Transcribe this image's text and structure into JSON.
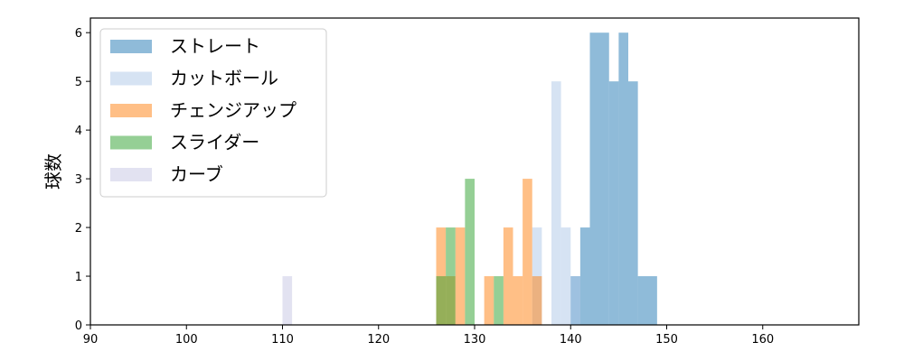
{
  "chart_data": {
    "type": "bar",
    "title": "",
    "xlabel": "",
    "ylabel": "球数",
    "xlim": [
      90,
      170
    ],
    "ylim": [
      0,
      6.3
    ],
    "xticks": [
      90,
      100,
      110,
      120,
      130,
      140,
      150,
      160
    ],
    "yticks": [
      0,
      1,
      2,
      3,
      4,
      5,
      6
    ],
    "grid": false,
    "legend_position": "top-left",
    "series": [
      {
        "name": "ストレート",
        "color": "#1f77b4",
        "bins": [
          {
            "x0": 140.0,
            "x1": 141.0,
            "count": 1
          },
          {
            "x0": 141.0,
            "x1": 142.0,
            "count": 2
          },
          {
            "x0": 142.0,
            "x1": 144.0,
            "count": 6
          },
          {
            "x0": 144.0,
            "x1": 145.0,
            "count": 5
          },
          {
            "x0": 145.0,
            "x1": 146.0,
            "count": 6
          },
          {
            "x0": 146.0,
            "x1": 147.0,
            "count": 5
          },
          {
            "x0": 147.0,
            "x1": 149.0,
            "count": 1
          }
        ]
      },
      {
        "name": "カットボール",
        "color": "#aec7e8",
        "bins": [
          {
            "x0": 136.0,
            "x1": 137.0,
            "count": 2
          },
          {
            "x0": 138.0,
            "x1": 139.0,
            "count": 5
          },
          {
            "x0": 139.0,
            "x1": 140.0,
            "count": 2
          },
          {
            "x0": 140.0,
            "x1": 141.0,
            "count": 1
          }
        ]
      },
      {
        "name": "チェンジアップ",
        "color": "#ff7f0e",
        "bins": [
          {
            "x0": 126.0,
            "x1": 127.0,
            "count": 2
          },
          {
            "x0": 127.0,
            "x1": 128.0,
            "count": 1
          },
          {
            "x0": 128.0,
            "x1": 129.0,
            "count": 2
          },
          {
            "x0": 131.0,
            "x1": 132.0,
            "count": 1
          },
          {
            "x0": 133.0,
            "x1": 134.0,
            "count": 2
          },
          {
            "x0": 134.0,
            "x1": 135.0,
            "count": 1
          },
          {
            "x0": 135.0,
            "x1": 136.0,
            "count": 3
          },
          {
            "x0": 136.0,
            "x1": 137.0,
            "count": 1
          }
        ]
      },
      {
        "name": "スライダー",
        "color": "#2ca02c",
        "bins": [
          {
            "x0": 126.0,
            "x1": 127.0,
            "count": 1
          },
          {
            "x0": 127.0,
            "x1": 128.0,
            "count": 2
          },
          {
            "x0": 129.0,
            "x1": 130.0,
            "count": 3
          },
          {
            "x0": 132.0,
            "x1": 133.0,
            "count": 1
          }
        ]
      },
      {
        "name": "カーブ",
        "color": "#c5c5e3",
        "bins": [
          {
            "x0": 110.0,
            "x1": 111.0,
            "count": 1
          }
        ]
      }
    ]
  }
}
